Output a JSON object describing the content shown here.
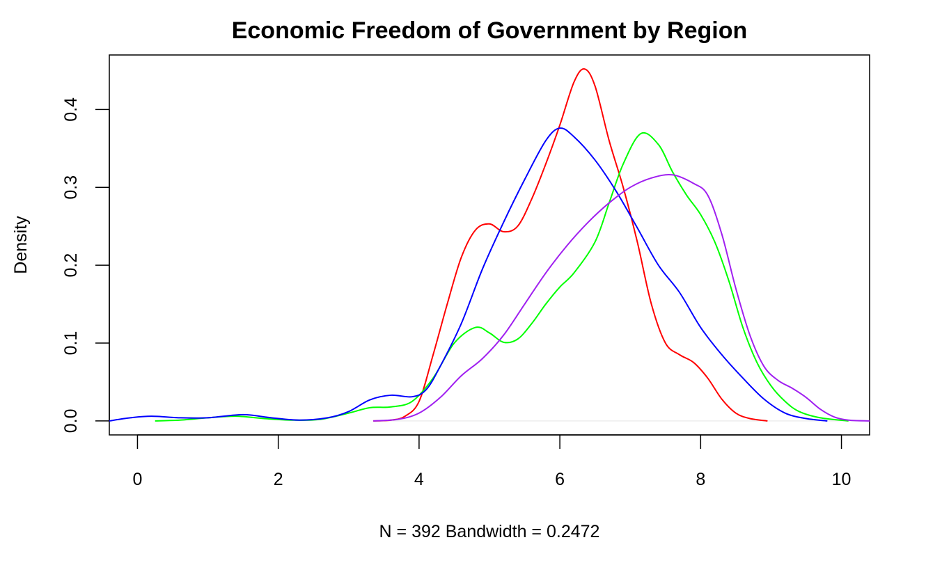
{
  "chart_data": {
    "type": "line",
    "title": "Economic Freedom of Government by Region",
    "xlabel": "N = 392   Bandwidth = 0.2472",
    "ylabel": "Density",
    "xlim": [
      -0.4,
      10.4
    ],
    "ylim": [
      -0.018,
      0.47
    ],
    "x_ticks": [
      0,
      2,
      4,
      6,
      8,
      10
    ],
    "x_tick_labels": [
      "0",
      "2",
      "4",
      "6",
      "8",
      "10"
    ],
    "y_ticks": [
      0.0,
      0.1,
      0.2,
      0.3,
      0.4
    ],
    "y_tick_labels": [
      "0.0",
      "0.1",
      "0.2",
      "0.3",
      "0.4"
    ],
    "grid": false,
    "series": [
      {
        "name": "red",
        "color": "#ff0000",
        "points": [
          [
            3.35,
            0.0
          ],
          [
            3.6,
            0.001
          ],
          [
            3.8,
            0.006
          ],
          [
            4.0,
            0.025
          ],
          [
            4.2,
            0.085
          ],
          [
            4.4,
            0.15
          ],
          [
            4.6,
            0.21
          ],
          [
            4.8,
            0.245
          ],
          [
            5.0,
            0.253
          ],
          [
            5.2,
            0.243
          ],
          [
            5.4,
            0.25
          ],
          [
            5.6,
            0.285
          ],
          [
            5.8,
            0.33
          ],
          [
            6.0,
            0.38
          ],
          [
            6.2,
            0.435
          ],
          [
            6.35,
            0.452
          ],
          [
            6.5,
            0.43
          ],
          [
            6.7,
            0.36
          ],
          [
            6.9,
            0.3
          ],
          [
            7.1,
            0.23
          ],
          [
            7.3,
            0.15
          ],
          [
            7.5,
            0.1
          ],
          [
            7.7,
            0.085
          ],
          [
            7.9,
            0.075
          ],
          [
            8.1,
            0.055
          ],
          [
            8.3,
            0.028
          ],
          [
            8.5,
            0.01
          ],
          [
            8.7,
            0.003
          ],
          [
            8.95,
            0.0
          ]
        ]
      },
      {
        "name": "green",
        "color": "#00ff00",
        "points": [
          [
            0.25,
            0.0
          ],
          [
            0.6,
            0.001
          ],
          [
            1.0,
            0.004
          ],
          [
            1.4,
            0.006
          ],
          [
            1.8,
            0.003
          ],
          [
            2.2,
            0.001
          ],
          [
            2.6,
            0.002
          ],
          [
            3.0,
            0.01
          ],
          [
            3.3,
            0.017
          ],
          [
            3.6,
            0.018
          ],
          [
            3.9,
            0.025
          ],
          [
            4.2,
            0.055
          ],
          [
            4.5,
            0.1
          ],
          [
            4.8,
            0.12
          ],
          [
            5.0,
            0.113
          ],
          [
            5.2,
            0.101
          ],
          [
            5.4,
            0.105
          ],
          [
            5.6,
            0.125
          ],
          [
            5.8,
            0.15
          ],
          [
            6.0,
            0.172
          ],
          [
            6.2,
            0.19
          ],
          [
            6.5,
            0.23
          ],
          [
            6.7,
            0.28
          ],
          [
            6.9,
            0.33
          ],
          [
            7.15,
            0.369
          ],
          [
            7.4,
            0.355
          ],
          [
            7.6,
            0.32
          ],
          [
            7.8,
            0.29
          ],
          [
            8.0,
            0.265
          ],
          [
            8.2,
            0.23
          ],
          [
            8.4,
            0.18
          ],
          [
            8.6,
            0.12
          ],
          [
            8.8,
            0.075
          ],
          [
            9.0,
            0.045
          ],
          [
            9.2,
            0.025
          ],
          [
            9.4,
            0.012
          ],
          [
            9.7,
            0.004
          ],
          [
            10.1,
            0.0
          ]
        ]
      },
      {
        "name": "blue",
        "color": "#0000ff",
        "points": [
          [
            -0.4,
            0.0
          ],
          [
            -0.1,
            0.004
          ],
          [
            0.2,
            0.006
          ],
          [
            0.6,
            0.004
          ],
          [
            1.0,
            0.004
          ],
          [
            1.5,
            0.008
          ],
          [
            1.9,
            0.004
          ],
          [
            2.3,
            0.001
          ],
          [
            2.7,
            0.004
          ],
          [
            3.0,
            0.012
          ],
          [
            3.3,
            0.027
          ],
          [
            3.6,
            0.033
          ],
          [
            3.9,
            0.031
          ],
          [
            4.1,
            0.04
          ],
          [
            4.3,
            0.07
          ],
          [
            4.6,
            0.125
          ],
          [
            4.9,
            0.195
          ],
          [
            5.2,
            0.255
          ],
          [
            5.5,
            0.31
          ],
          [
            5.8,
            0.36
          ],
          [
            6.0,
            0.376
          ],
          [
            6.2,
            0.365
          ],
          [
            6.5,
            0.335
          ],
          [
            6.8,
            0.295
          ],
          [
            7.1,
            0.248
          ],
          [
            7.4,
            0.2
          ],
          [
            7.7,
            0.165
          ],
          [
            8.0,
            0.12
          ],
          [
            8.3,
            0.085
          ],
          [
            8.6,
            0.055
          ],
          [
            8.9,
            0.028
          ],
          [
            9.2,
            0.01
          ],
          [
            9.5,
            0.003
          ],
          [
            9.8,
            0.0
          ]
        ]
      },
      {
        "name": "purple",
        "color": "#a020f0",
        "points": [
          [
            3.35,
            0.0
          ],
          [
            3.7,
            0.002
          ],
          [
            4.0,
            0.01
          ],
          [
            4.3,
            0.03
          ],
          [
            4.6,
            0.058
          ],
          [
            4.9,
            0.08
          ],
          [
            5.2,
            0.11
          ],
          [
            5.5,
            0.15
          ],
          [
            5.8,
            0.19
          ],
          [
            6.1,
            0.225
          ],
          [
            6.4,
            0.255
          ],
          [
            6.7,
            0.28
          ],
          [
            7.0,
            0.3
          ],
          [
            7.3,
            0.312
          ],
          [
            7.6,
            0.316
          ],
          [
            7.9,
            0.305
          ],
          [
            8.1,
            0.29
          ],
          [
            8.3,
            0.24
          ],
          [
            8.5,
            0.17
          ],
          [
            8.7,
            0.11
          ],
          [
            8.9,
            0.07
          ],
          [
            9.1,
            0.052
          ],
          [
            9.3,
            0.042
          ],
          [
            9.5,
            0.03
          ],
          [
            9.7,
            0.015
          ],
          [
            9.9,
            0.005
          ],
          [
            10.1,
            0.001
          ],
          [
            10.4,
            0.0
          ]
        ]
      }
    ],
    "baseline": {
      "y": 0.0,
      "color": "#eeeeee"
    }
  }
}
